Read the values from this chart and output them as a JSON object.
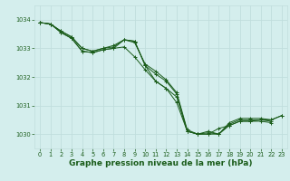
{
  "background_color": "#d4eeed",
  "grid_color": "#c0dedd",
  "line_color": "#1a5c1a",
  "marker_color": "#1a5c1a",
  "xlabel": "Graphe pression niveau de la mer (hPa)",
  "xlabel_fontsize": 6.5,
  "xlabel_color": "#1a5c1a",
  "tick_color": "#1a5c1a",
  "tick_fontsize": 4.8,
  "xlim": [
    -0.5,
    23.5
  ],
  "ylim": [
    1029.5,
    1034.5
  ],
  "yticks": [
    1030,
    1031,
    1032,
    1033,
    1034
  ],
  "xticks": [
    0,
    1,
    2,
    3,
    4,
    5,
    6,
    7,
    8,
    9,
    10,
    11,
    12,
    13,
    14,
    15,
    16,
    17,
    18,
    19,
    20,
    21,
    22,
    23
  ],
  "series": [
    [
      1033.9,
      1033.85,
      1033.6,
      1033.4,
      1033.0,
      1032.9,
      1033.0,
      1033.1,
      1033.3,
      1033.2,
      1032.45,
      1032.2,
      1031.9,
      1031.45,
      1030.15,
      1030.0,
      1030.1,
      1030.0,
      1030.4,
      1030.55,
      1030.55,
      1030.55,
      1030.5,
      1030.65
    ],
    [
      1033.9,
      1033.85,
      1033.55,
      1033.35,
      1032.9,
      1032.85,
      1032.95,
      1033.0,
      1033.3,
      1033.25,
      1032.4,
      1031.85,
      1031.6,
      1031.3,
      1030.1,
      1030.0,
      1030.0,
      1030.0,
      1030.3,
      1030.45,
      1030.45,
      1030.45,
      1030.4,
      null
    ],
    [
      1033.9,
      1033.85,
      1033.6,
      1033.4,
      1033.0,
      1032.9,
      1033.0,
      1033.05,
      1033.3,
      1033.25,
      1032.4,
      1032.1,
      1031.85,
      1031.4,
      1030.1,
      1030.0,
      1030.05,
      1030.0,
      1030.35,
      1030.5,
      1030.5,
      1030.5,
      1030.45,
      null
    ]
  ],
  "main_series": [
    1033.9,
    1033.85,
    1033.55,
    1033.35,
    1032.9,
    1032.85,
    1032.95,
    1033.0,
    1033.05,
    1032.7,
    1032.25,
    1031.85,
    1031.6,
    1031.1,
    1030.1,
    1030.0,
    1030.0,
    1030.2,
    1030.3,
    1030.45,
    1030.45,
    1030.5,
    1030.5,
    1030.65
  ]
}
